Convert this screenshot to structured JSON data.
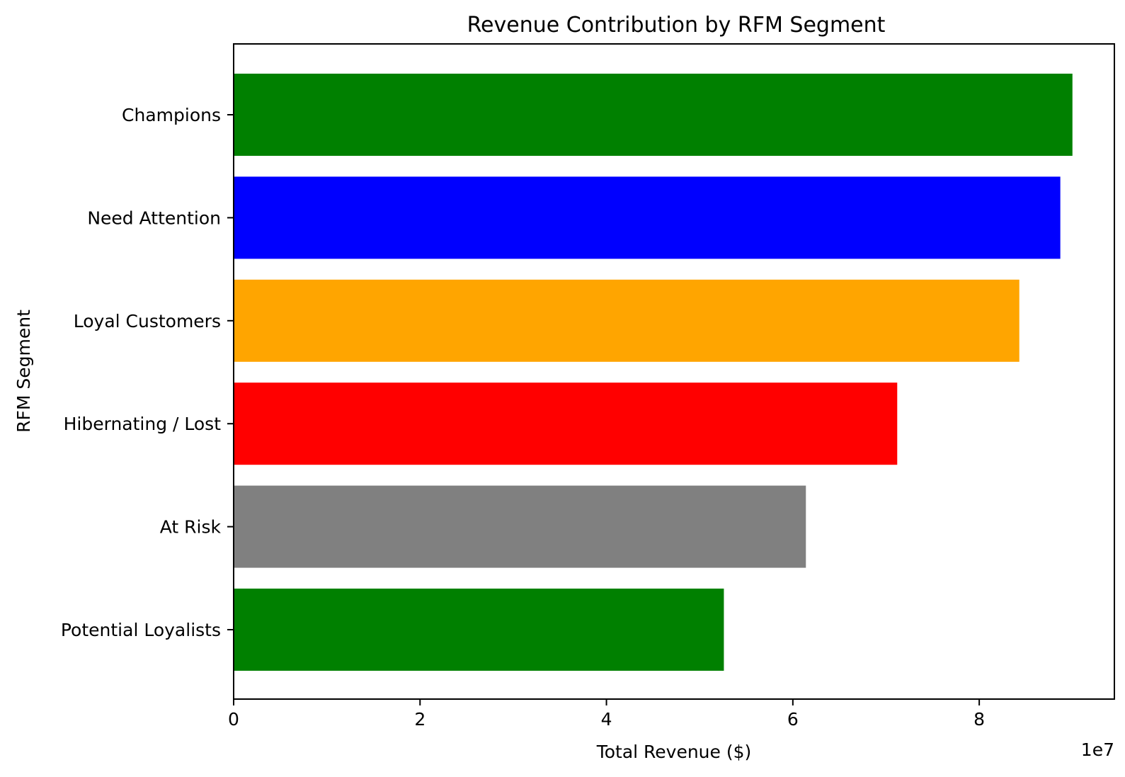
{
  "chart_data": {
    "type": "bar",
    "orientation": "horizontal",
    "title": "Revenue Contribution by RFM Segment",
    "xlabel": "Total Revenue ($)",
    "ylabel": "RFM Segment",
    "x_offset_label": "1e7",
    "x_scale": 10000000,
    "xlim": [
      0,
      94500000
    ],
    "xticks": [
      0,
      2,
      4,
      6,
      8
    ],
    "grid": false,
    "categories": [
      "Champions",
      "Need Attention",
      "Loyal Customers",
      "Hibernating / Lost",
      "At Risk",
      "Potential Loyalists"
    ],
    "values": [
      90000000,
      88700000,
      84300000,
      71200000,
      61400000,
      52600000
    ],
    "colors": [
      "#008000",
      "#0000ff",
      "#ffa500",
      "#ff0000",
      "#808080",
      "#008000"
    ]
  }
}
